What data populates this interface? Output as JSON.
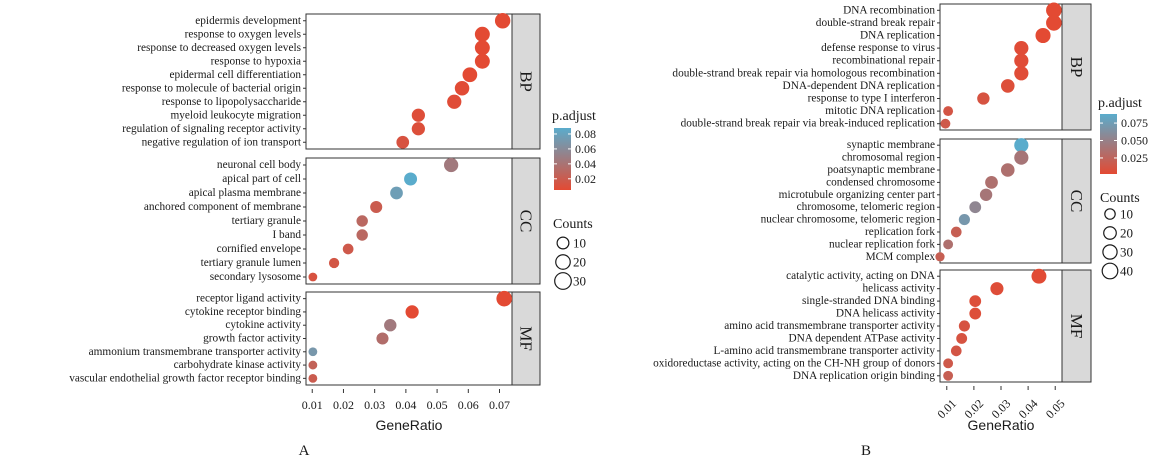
{
  "chart_data": [
    {
      "type": "scatter",
      "panel_label": "A",
      "xlabel": "GeneRatio",
      "xticks": [
        "0.01",
        "0.02",
        "0.03",
        "0.04",
        "0.05",
        "0.06",
        "0.07"
      ],
      "xlim": [
        0.008,
        0.074
      ],
      "x_tick_rotated": false,
      "color_legend": {
        "title": "p.adjust",
        "ticks": [
          "0.08",
          "0.06",
          "0.04",
          "0.02"
        ],
        "min": 0.005,
        "max": 0.088,
        "low_color": "#e34a33",
        "high_color": "#5aaccc"
      },
      "size_legend": {
        "title": "Counts",
        "labels": [
          "10",
          "20",
          "30"
        ]
      },
      "facets": [
        {
          "name": "BP",
          "terms": [
            {
              "term": "epidermis development",
              "x": 0.071,
              "count": 24,
              "padj": 0.003
            },
            {
              "term": "response to oxygen levels",
              "x": 0.0645,
              "count": 22,
              "padj": 0.004
            },
            {
              "term": "response to decreased oxygen levels",
              "x": 0.0645,
              "count": 22,
              "padj": 0.004
            },
            {
              "term": "response to hypoxia",
              "x": 0.0645,
              "count": 22,
              "padj": 0.004
            },
            {
              "term": "epidermal cell differentiation",
              "x": 0.0605,
              "count": 21,
              "padj": 0.005
            },
            {
              "term": "response to molecule of bacterial origin",
              "x": 0.058,
              "count": 20,
              "padj": 0.006
            },
            {
              "term": "response to lipopolysaccharide",
              "x": 0.0555,
              "count": 19,
              "padj": 0.007
            },
            {
              "term": "myeloid leukocyte migration",
              "x": 0.044,
              "count": 15,
              "padj": 0.008
            },
            {
              "term": "regulation of signaling receptor activity",
              "x": 0.044,
              "count": 15,
              "padj": 0.009
            },
            {
              "term": "negative regulation of ion transport",
              "x": 0.039,
              "count": 13,
              "padj": 0.012
            }
          ]
        },
        {
          "name": "CC",
          "terms": [
            {
              "term": "neuronal cell body",
              "x": 0.0545,
              "count": 19,
              "padj": 0.045
            },
            {
              "term": "apical part of cell",
              "x": 0.0415,
              "count": 14,
              "padj": 0.088
            },
            {
              "term": "apical plasma membrane",
              "x": 0.037,
              "count": 13,
              "padj": 0.076
            },
            {
              "term": "anchored component of membrane",
              "x": 0.0305,
              "count": 11,
              "padj": 0.02
            },
            {
              "term": "tertiary granule",
              "x": 0.026,
              "count": 9,
              "padj": 0.03
            },
            {
              "term": "I band",
              "x": 0.026,
              "count": 9,
              "padj": 0.03
            },
            {
              "term": "cornified envelope",
              "x": 0.0215,
              "count": 7,
              "padj": 0.018
            },
            {
              "term": "tertiary granule lumen",
              "x": 0.017,
              "count": 6,
              "padj": 0.015
            },
            {
              "term": "secondary lysosome",
              "x": 0.0102,
              "count": 3,
              "padj": 0.012
            }
          ]
        },
        {
          "name": "MF",
          "terms": [
            {
              "term": "receptor ligand activity",
              "x": 0.0715,
              "count": 25,
              "padj": 0.001
            },
            {
              "term": "cytokine receptor binding",
              "x": 0.042,
              "count": 15,
              "padj": 0.005
            },
            {
              "term": "cytokine activity",
              "x": 0.035,
              "count": 12,
              "padj": 0.045
            },
            {
              "term": "growth factor activity",
              "x": 0.0325,
              "count": 11,
              "padj": 0.035
            },
            {
              "term": "ammonium transmembrane transporter activity",
              "x": 0.0102,
              "count": 3,
              "padj": 0.07
            },
            {
              "term": "carbohydrate kinase activity",
              "x": 0.0102,
              "count": 3,
              "padj": 0.025
            },
            {
              "term": "vascular endothelial growth factor receptor binding",
              "x": 0.0102,
              "count": 3,
              "padj": 0.02
            }
          ]
        }
      ]
    },
    {
      "type": "scatter",
      "panel_label": "B",
      "xlabel": "GeneRatio",
      "xticks": [
        "0.01",
        "0.02",
        "0.03",
        "0.04",
        "0.05"
      ],
      "xlim": [
        0.0075,
        0.0525
      ],
      "x_tick_rotated": true,
      "color_legend": {
        "title": "p.adjust",
        "ticks": [
          "0.075",
          "0.050",
          "0.025"
        ],
        "min": 0.002,
        "max": 0.088,
        "low_color": "#e34a33",
        "high_color": "#5aaccc"
      },
      "size_legend": {
        "title": "Counts",
        "labels": [
          "10",
          "20",
          "30",
          "40"
        ]
      },
      "facets": [
        {
          "name": "BP",
          "terms": [
            {
              "term": "DNA recombination",
              "x": 0.0495,
              "count": 40,
              "padj": 0.001
            },
            {
              "term": "double-strand break repair",
              "x": 0.0495,
              "count": 40,
              "padj": 0.001
            },
            {
              "term": "DNA replication",
              "x": 0.0455,
              "count": 36,
              "padj": 0.002
            },
            {
              "term": "defense response to virus",
              "x": 0.0375,
              "count": 30,
              "padj": 0.004
            },
            {
              "term": "recombinational repair",
              "x": 0.0375,
              "count": 30,
              "padj": 0.004
            },
            {
              "term": "double-strand break repair via homologous recombination",
              "x": 0.0375,
              "count": 30,
              "padj": 0.004
            },
            {
              "term": "DNA-dependent DNA replication",
              "x": 0.0325,
              "count": 26,
              "padj": 0.006
            },
            {
              "term": "response to type I interferon",
              "x": 0.0235,
              "count": 19,
              "padj": 0.01
            },
            {
              "term": "mitotic DNA replication",
              "x": 0.0105,
              "count": 8,
              "padj": 0.012
            },
            {
              "term": "double-strand break repair via break-induced replication",
              "x": 0.0095,
              "count": 8,
              "padj": 0.015
            }
          ]
        },
        {
          "name": "CC",
          "terms": [
            {
              "term": "synaptic membrane",
              "x": 0.0375,
              "count": 30,
              "padj": 0.088
            },
            {
              "term": "chromosomal region",
              "x": 0.0375,
              "count": 30,
              "padj": 0.04
            },
            {
              "term": "poatsynaptic membrane",
              "x": 0.0325,
              "count": 26,
              "padj": 0.035
            },
            {
              "term": "condensed chromosome",
              "x": 0.0265,
              "count": 21,
              "padj": 0.035
            },
            {
              "term": "microtubule organizing center part",
              "x": 0.0245,
              "count": 19,
              "padj": 0.04
            },
            {
              "term": "chromosome, telomeric region",
              "x": 0.0205,
              "count": 16,
              "padj": 0.055
            },
            {
              "term": "nuclear chromosome, telomeric region",
              "x": 0.0165,
              "count": 13,
              "padj": 0.07
            },
            {
              "term": "replication fork",
              "x": 0.0135,
              "count": 11,
              "padj": 0.02
            },
            {
              "term": "nuclear replication fork",
              "x": 0.0105,
              "count": 8,
              "padj": 0.035
            },
            {
              "term": "MCM complex",
              "x": 0.0075,
              "count": 6,
              "padj": 0.02
            }
          ]
        },
        {
          "name": "MF",
          "terms": [
            {
              "term": "catalytic activity, acting on DNA",
              "x": 0.044,
              "count": 35,
              "padj": 0.003
            },
            {
              "term": "helicass activity",
              "x": 0.0285,
              "count": 23,
              "padj": 0.005
            },
            {
              "term": "single-stranded DNA binding",
              "x": 0.0205,
              "count": 16,
              "padj": 0.006
            },
            {
              "term": "DNA helicass activity",
              "x": 0.0205,
              "count": 16,
              "padj": 0.006
            },
            {
              "term": "amino acid transmembrane transporter activity",
              "x": 0.0165,
              "count": 13,
              "padj": 0.01
            },
            {
              "term": "DNA dependent ATPase activity",
              "x": 0.0155,
              "count": 12,
              "padj": 0.01
            },
            {
              "term": "L-amino acid transmembrane transporter activity",
              "x": 0.0135,
              "count": 11,
              "padj": 0.012
            },
            {
              "term": "oxidoreductase activity, acting on the CH-NH group of donors",
              "x": 0.0105,
              "count": 8,
              "padj": 0.015
            },
            {
              "term": "DNA replication origin binding",
              "x": 0.0105,
              "count": 8,
              "padj": 0.02
            }
          ]
        }
      ]
    }
  ]
}
